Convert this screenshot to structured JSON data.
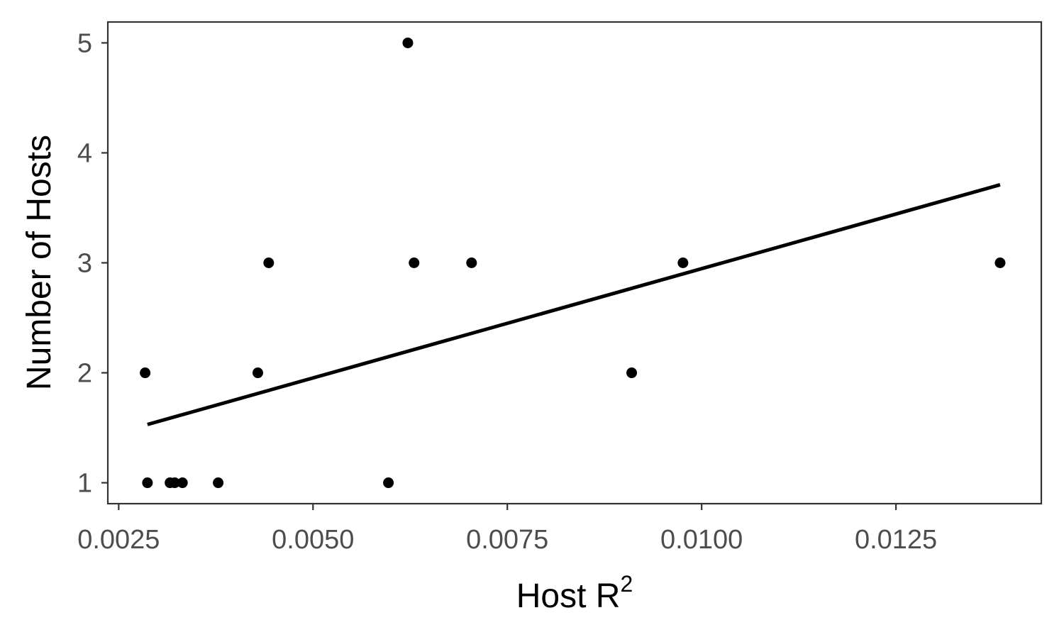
{
  "chart_data": {
    "type": "scatter",
    "title": "",
    "xlabel": "Host R",
    "xlabel_superscript": "2",
    "ylabel": "Number of Hosts",
    "xlim": [
      0.00236,
      0.01437
    ],
    "ylim": [
      0.81,
      5.19
    ],
    "x_ticks": [
      0.0025,
      0.005,
      0.0075,
      0.01,
      0.0125
    ],
    "x_tick_labels": [
      "0.0025",
      "0.0050",
      "0.0075",
      "0.0100",
      "0.0125"
    ],
    "y_ticks": [
      1,
      2,
      3,
      4,
      5
    ],
    "y_tick_labels": [
      "1",
      "2",
      "3",
      "4",
      "5"
    ],
    "grid": false,
    "points": [
      {
        "x": 0.00284,
        "y": 2
      },
      {
        "x": 0.00287,
        "y": 1
      },
      {
        "x": 0.00316,
        "y": 1
      },
      {
        "x": 0.00322,
        "y": 1
      },
      {
        "x": 0.00332,
        "y": 1
      },
      {
        "x": 0.00378,
        "y": 1
      },
      {
        "x": 0.00429,
        "y": 2
      },
      {
        "x": 0.00443,
        "y": 3
      },
      {
        "x": 0.00597,
        "y": 1
      },
      {
        "x": 0.00622,
        "y": 5
      },
      {
        "x": 0.0063,
        "y": 3
      },
      {
        "x": 0.00704,
        "y": 3
      },
      {
        "x": 0.0091,
        "y": 2
      },
      {
        "x": 0.00976,
        "y": 3
      },
      {
        "x": 0.01384,
        "y": 3
      }
    ],
    "trend_line": {
      "x": [
        0.00287,
        0.01384
      ],
      "y": [
        1.53,
        3.71
      ]
    },
    "colors": {
      "points": "#000000",
      "trend_line": "#000000",
      "panel_border": "#333333",
      "tick_text": "#4d4d4d",
      "axis_title": "#000000"
    }
  }
}
